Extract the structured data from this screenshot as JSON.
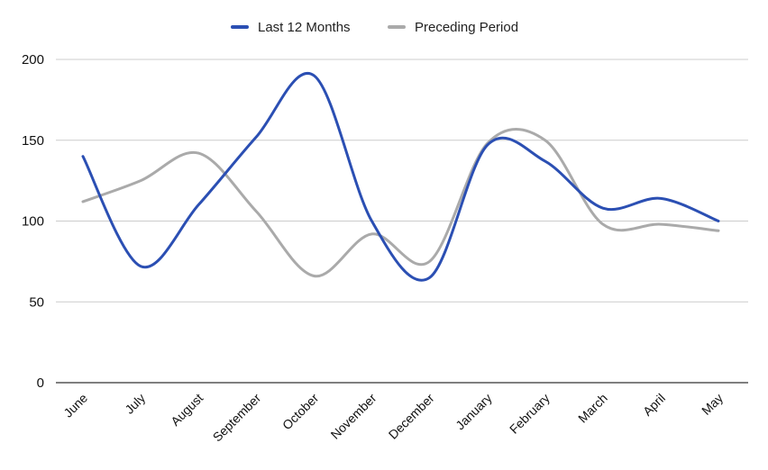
{
  "chart_data": {
    "type": "line",
    "smooth": true,
    "categories": [
      "June",
      "July",
      "August",
      "September",
      "October",
      "November",
      "December",
      "January",
      "February",
      "March",
      "April",
      "May"
    ],
    "series": [
      {
        "name": "Last 12 Months",
        "color": "#2b4fb3",
        "values": [
          140,
          72,
          110,
          152,
          190,
          100,
          65,
          147,
          137,
          108,
          114,
          100
        ]
      },
      {
        "name": "Preceding Period",
        "color": "#aaaaaa",
        "values": [
          112,
          125,
          142,
          106,
          66,
          92,
          75,
          148,
          150,
          98,
          98,
          94
        ]
      }
    ],
    "ylim": [
      0,
      200
    ],
    "yticks": [
      0,
      50,
      100,
      150,
      200
    ],
    "grid": true,
    "legend_position": "top-center"
  }
}
